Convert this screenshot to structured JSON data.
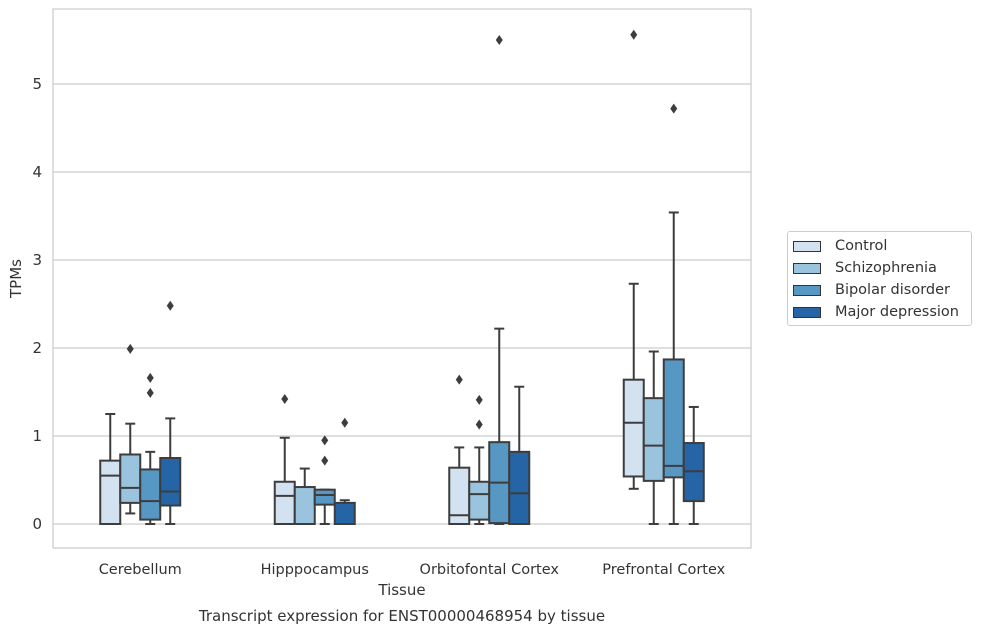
{
  "chart_data": {
    "type": "box",
    "title": "Transcript expression for ENST00000468954 by tissue",
    "xlabel": "Tissue",
    "ylabel": "TPMs",
    "ylim": [
      -0.27,
      5.85
    ],
    "yticks": [
      0,
      1,
      2,
      3,
      4,
      5
    ],
    "grid": true,
    "legend_placement": "right",
    "categories": [
      "Cerebellum",
      "Hipppocampus",
      "Orbitofontal Cortex",
      "Prefrontal Cortex"
    ],
    "series": [
      {
        "name": "Control",
        "color": "#d3e2f0",
        "boxes": [
          {
            "whislo": 0.0,
            "q1": 0.0,
            "med": 0.55,
            "q3": 0.72,
            "whishi": 1.25,
            "fliers": []
          },
          {
            "whislo": 0.0,
            "q1": 0.0,
            "med": 0.32,
            "q3": 0.48,
            "whishi": 0.98,
            "fliers": [
              1.42
            ]
          },
          {
            "whislo": 0.0,
            "q1": 0.0,
            "med": 0.1,
            "q3": 0.64,
            "whishi": 0.87,
            "fliers": [
              1.64
            ]
          },
          {
            "whislo": 0.4,
            "q1": 0.54,
            "med": 1.15,
            "q3": 1.64,
            "whishi": 2.73,
            "fliers": [
              5.56
            ]
          }
        ]
      },
      {
        "name": "Schizophrenia",
        "color": "#9ac3dd",
        "boxes": [
          {
            "whislo": 0.12,
            "q1": 0.24,
            "med": 0.41,
            "q3": 0.79,
            "whishi": 1.14,
            "fliers": [
              1.99
            ]
          },
          {
            "whislo": 0.0,
            "q1": 0.0,
            "med": 0.0,
            "q3": 0.42,
            "whishi": 0.63,
            "fliers": []
          },
          {
            "whislo": 0.0,
            "q1": 0.05,
            "med": 0.34,
            "q3": 0.48,
            "whishi": 0.87,
            "fliers": [
              1.13,
              1.41
            ]
          },
          {
            "whislo": 0.0,
            "q1": 0.49,
            "med": 0.89,
            "q3": 1.43,
            "whishi": 1.96,
            "fliers": []
          }
        ]
      },
      {
        "name": "Bipolar disorder",
        "color": "#5797c4",
        "boxes": [
          {
            "whislo": 0.0,
            "q1": 0.05,
            "med": 0.26,
            "q3": 0.62,
            "whishi": 0.82,
            "fliers": [
              1.49,
              1.66
            ]
          },
          {
            "whislo": 0.0,
            "q1": 0.22,
            "med": 0.33,
            "q3": 0.39,
            "whishi": 0.39,
            "fliers": [
              0.72,
              0.95
            ]
          },
          {
            "whislo": 0.0,
            "q1": 0.01,
            "med": 0.47,
            "q3": 0.93,
            "whishi": 2.22,
            "fliers": [
              5.5
            ]
          },
          {
            "whislo": 0.0,
            "q1": 0.53,
            "med": 0.66,
            "q3": 1.87,
            "whishi": 3.54,
            "fliers": [
              4.72
            ]
          }
        ]
      },
      {
        "name": "Major depression",
        "color": "#2565a5",
        "boxes": [
          {
            "whislo": 0.0,
            "q1": 0.21,
            "med": 0.37,
            "q3": 0.75,
            "whishi": 1.2,
            "fliers": [
              2.48
            ]
          },
          {
            "whislo": 0.0,
            "q1": 0.0,
            "med": 0.0,
            "q3": 0.24,
            "whishi": 0.27,
            "fliers": [
              1.15
            ]
          },
          {
            "whislo": 0.0,
            "q1": 0.0,
            "med": 0.35,
            "q3": 0.82,
            "whishi": 1.56,
            "fliers": []
          },
          {
            "whislo": 0.0,
            "q1": 0.26,
            "med": 0.6,
            "q3": 0.92,
            "whishi": 1.33,
            "fliers": []
          }
        ]
      }
    ]
  }
}
